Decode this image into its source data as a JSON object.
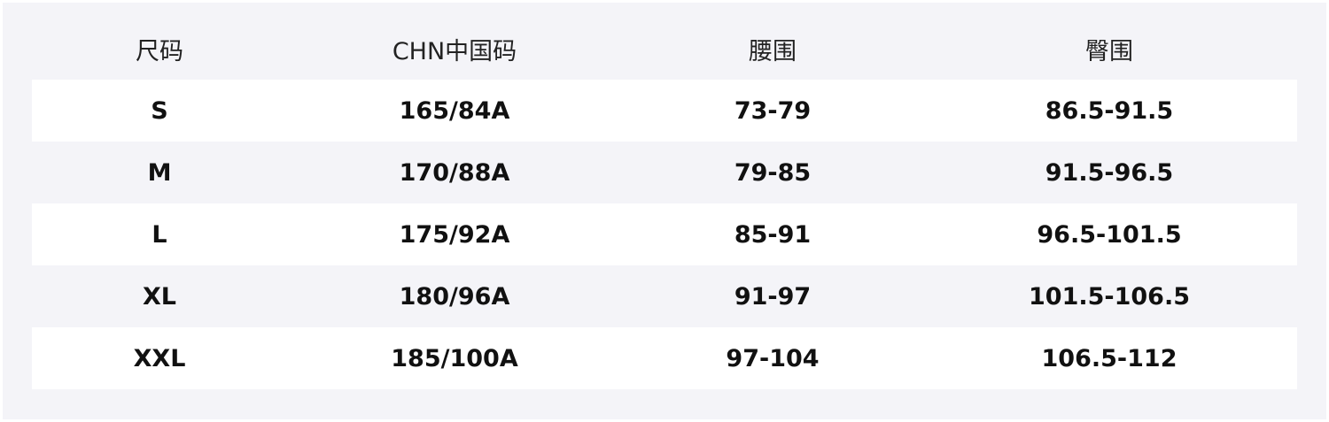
{
  "headers": [
    "尺码",
    "CHN中国码",
    "腰围",
    "臀围"
  ],
  "rows": [
    [
      "S",
      "165/84A",
      "73-79",
      "86.5-91.5"
    ],
    [
      "M",
      "170/88A",
      "79-85",
      "91.5-96.5"
    ],
    [
      "L",
      "175/92A",
      "85-91",
      "96.5-101.5"
    ],
    [
      "XL",
      "180/96A",
      "91-97",
      "101.5-106.5"
    ],
    [
      "XXL",
      "185/100A",
      "97-104",
      "106.5-112"
    ]
  ]
}
